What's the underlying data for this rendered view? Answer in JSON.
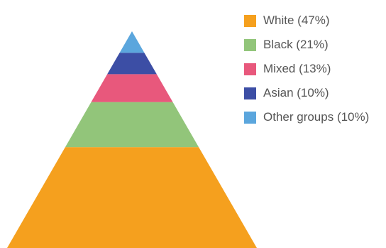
{
  "chart_data": {
    "type": "pyramid",
    "series": [
      {
        "name": "White",
        "value": 47,
        "label": "White (47%)",
        "color": "#f5a01e"
      },
      {
        "name": "Black",
        "value": 21,
        "label": "Black (21%)",
        "color": "#92c57a"
      },
      {
        "name": "Mixed",
        "value": 13,
        "label": "Mixed (13%)",
        "color": "#e8587c"
      },
      {
        "name": "Asian",
        "value": 10,
        "label": "Asian (10%)",
        "color": "#3c4ea5"
      },
      {
        "name": "Other groups",
        "value": 10,
        "label": "Other groups (10%)",
        "color": "#5ba6dd"
      }
    ],
    "legend_position": "top-right"
  }
}
